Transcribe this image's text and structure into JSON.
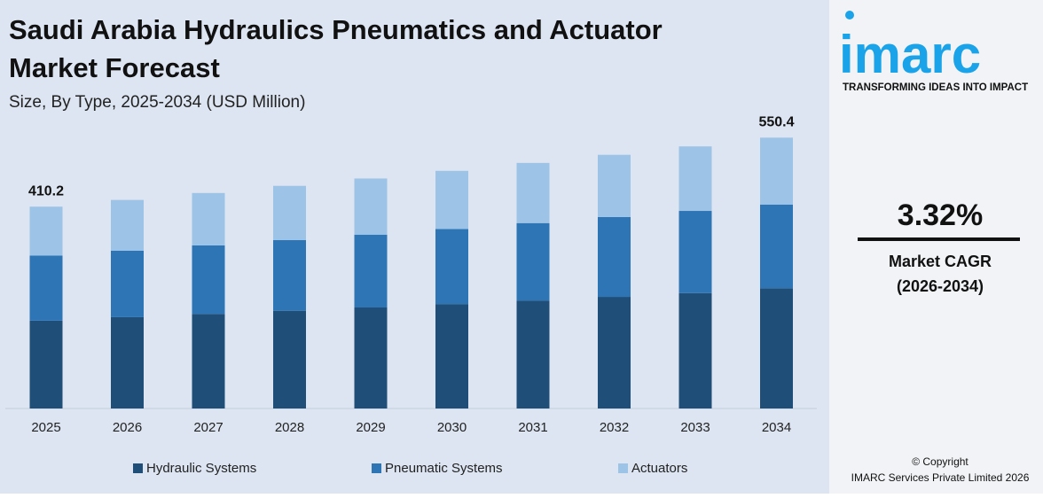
{
  "chart_data": {
    "type": "stacked_bar",
    "title": "Saudi Arabia Hydraulics Pneumatics and Actuator Market Forecast",
    "subtitle": "Size, By Type, 2025-2034 (USD Million)",
    "categories": [
      "2025",
      "2026",
      "2027",
      "2028",
      "2029",
      "2030",
      "2031",
      "2032",
      "2033",
      "2034"
    ],
    "series": [
      {
        "name": "Hydraulic Systems",
        "color": "#1f4e79",
        "values": [
          178.5,
          185.6,
          192.2,
          198.6,
          205.3,
          212.2,
          219.4,
          226.8,
          234.4,
          244.4
        ]
      },
      {
        "name": "Pneumatic Systems",
        "color": "#2e75b6",
        "values": [
          132.4,
          135.2,
          139.3,
          143.6,
          148.0,
          152.6,
          157.4,
          162.2,
          167.1,
          170.1
        ]
      },
      {
        "name": "Actuators",
        "color": "#9dc3e6",
        "values": [
          99.3,
          103.0,
          106.4,
          110.2,
          114.1,
          118.1,
          122.2,
          126.5,
          131.1,
          135.9
        ]
      }
    ],
    "totals": [
      410.2,
      null,
      null,
      null,
      null,
      null,
      null,
      null,
      null,
      550.4
    ],
    "ylim": [
      0,
      560
    ]
  },
  "brand": {
    "logo": "imarc",
    "tagline": "TRANSFORMING IDEAS INTO IMPACT",
    "cagr": "3.32%",
    "cagr_label": "Market CAGR",
    "cagr_period": "(2026-2034)",
    "copyright": "© Copyright",
    "company": "IMARC Services Private Limited 2026"
  }
}
